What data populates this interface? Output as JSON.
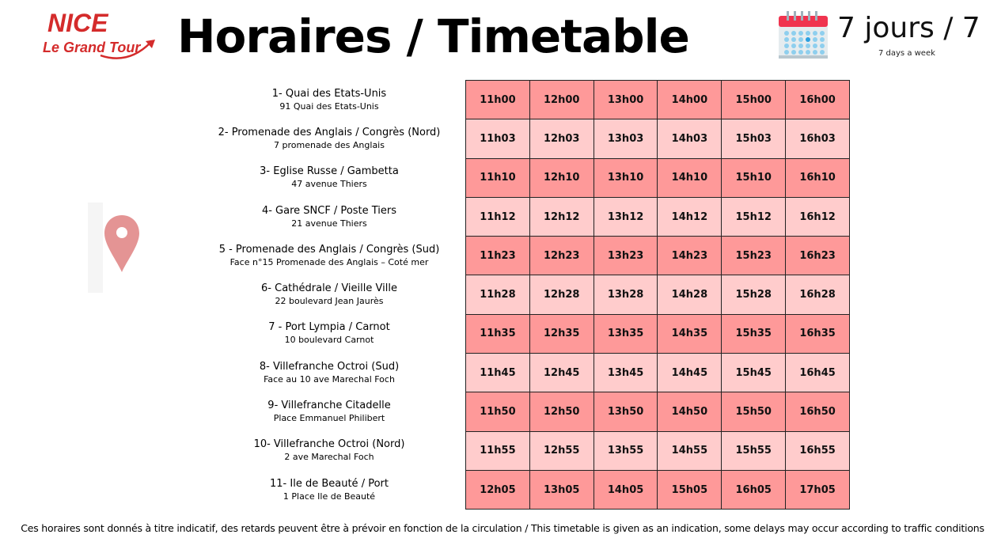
{
  "logo": {
    "line1": "NICE",
    "line2": "Le Grand Tour",
    "color": "#d42b2b"
  },
  "header": {
    "title": "Horaires / Timetable",
    "days": "7 jours / 7",
    "days_sub": "7 days a week"
  },
  "colors": {
    "row_dark": "#fe9999",
    "row_light": "#ffcccc",
    "pin": "#e49494"
  },
  "stops": [
    {
      "name": "1- Quai des Etats-Unis",
      "address": "91 Quai des Etats-Unis",
      "times": [
        "11h00",
        "12h00",
        "13h00",
        "14h00",
        "15h00",
        "16h00"
      ]
    },
    {
      "name": "2- Promenade des Anglais / Congrès (Nord)",
      "address": "7 promenade des Anglais",
      "times": [
        "11h03",
        "12h03",
        "13h03",
        "14h03",
        "15h03",
        "16h03"
      ]
    },
    {
      "name": "3- Eglise Russe / Gambetta",
      "address": "47 avenue Thiers",
      "times": [
        "11h10",
        "12h10",
        "13h10",
        "14h10",
        "15h10",
        "16h10"
      ]
    },
    {
      "name": "4- Gare SNCF / Poste Tiers",
      "address": "21 avenue Thiers",
      "times": [
        "11h12",
        "12h12",
        "13h12",
        "14h12",
        "15h12",
        "16h12"
      ]
    },
    {
      "name": "5 - Promenade des Anglais / Congrès (Sud)",
      "address": "Face n°15 Promenade des Anglais – Coté mer",
      "times": [
        "11h23",
        "12h23",
        "13h23",
        "14h23",
        "15h23",
        "16h23"
      ]
    },
    {
      "name": "6- Cathédrale / Vieille Ville",
      "address": "22 boulevard Jean Jaurès",
      "times": [
        "11h28",
        "12h28",
        "13h28",
        "14h28",
        "15h28",
        "16h28"
      ]
    },
    {
      "name": "7 - Port Lympia / Carnot",
      "address": "10 boulevard Carnot",
      "times": [
        "11h35",
        "12h35",
        "13h35",
        "14h35",
        "15h35",
        "16h35"
      ]
    },
    {
      "name": "8- Villefranche Octroi (Sud)",
      "address": "Face au 10 ave Marechal Foch",
      "times": [
        "11h45",
        "12h45",
        "13h45",
        "14h45",
        "15h45",
        "16h45"
      ]
    },
    {
      "name": "9- Villefranche Citadelle",
      "address": "Place Emmanuel Philibert",
      "times": [
        "11h50",
        "12h50",
        "13h50",
        "14h50",
        "15h50",
        "16h50"
      ]
    },
    {
      "name": "10- Villefranche Octroi (Nord)",
      "address": "2 ave Marechal Foch",
      "times": [
        "11h55",
        "12h55",
        "13h55",
        "14h55",
        "15h55",
        "16h55"
      ]
    },
    {
      "name": "11- Ile de Beauté / Port",
      "address": "1 Place Ile de Beauté",
      "times": [
        "12h05",
        "13h05",
        "14h05",
        "15h05",
        "16h05",
        "17h05"
      ]
    }
  ],
  "footer": "Ces horaires sont donnés à titre indicatif, des retards peuvent être à prévoir en fonction de la circulation / This timetable is given as an indication, some delays may occur according to traffic conditions"
}
